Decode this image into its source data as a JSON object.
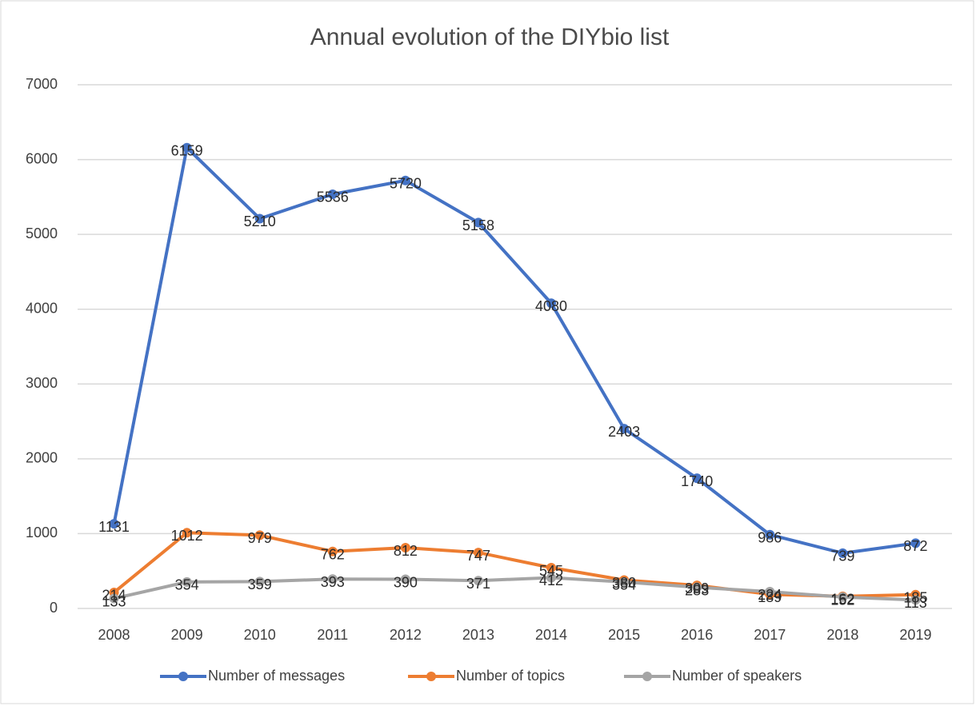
{
  "chart_data": {
    "type": "line",
    "title": "Annual evolution of the DIYbio list",
    "categories": [
      "2008",
      "2009",
      "2010",
      "2011",
      "2012",
      "2013",
      "2014",
      "2015",
      "2016",
      "2017",
      "2018",
      "2019"
    ],
    "series": [
      {
        "name": "Number of messages",
        "color": "#4472c4",
        "values": [
          1131,
          6159,
          5210,
          5536,
          5720,
          5158,
          4080,
          2403,
          1740,
          986,
          739,
          872
        ]
      },
      {
        "name": "Number of topics",
        "color": "#ed7d31",
        "values": [
          214,
          1012,
          979,
          762,
          812,
          747,
          545,
          380,
          309,
          189,
          162,
          185
        ]
      },
      {
        "name": "Number of speakers",
        "color": "#a5a5a5",
        "values": [
          133,
          354,
          359,
          393,
          390,
          371,
          412,
          354,
          283,
          224,
          152,
          113
        ]
      }
    ],
    "ylim": [
      0,
      7000
    ],
    "yticks": [
      0,
      1000,
      2000,
      3000,
      4000,
      5000,
      6000,
      7000
    ],
    "grid": true,
    "legend": "bottom"
  }
}
